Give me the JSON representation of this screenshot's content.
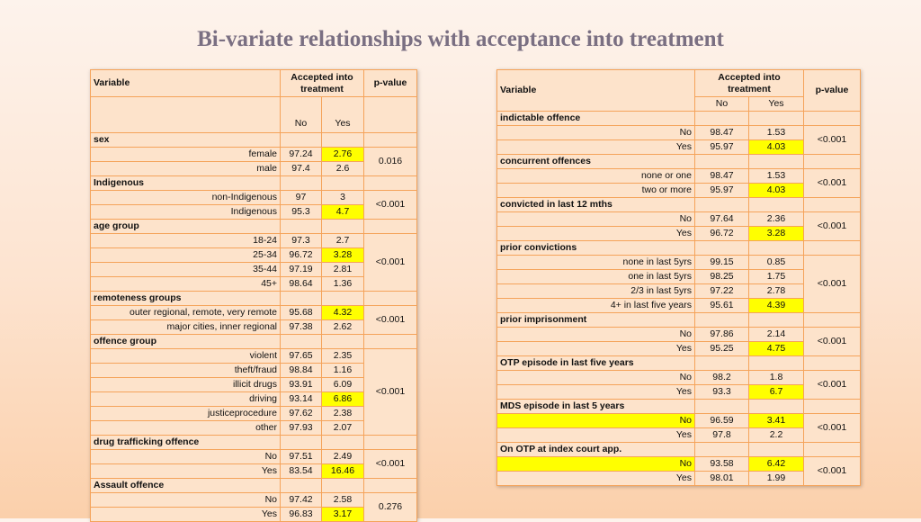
{
  "title": "Bi-variate relationships with acceptance into treatment",
  "headers": {
    "variable": "Variable",
    "accepted": "Accepted into treatment",
    "pvalue": "p-value",
    "no": "No",
    "yes": "Yes"
  },
  "left": [
    {
      "section": "sex",
      "rows": [
        {
          "label": "female",
          "no": "97.24",
          "yes": "2.76",
          "hl_yes": true
        },
        {
          "label": "male",
          "no": "97.4",
          "yes": "2.6"
        }
      ],
      "p": "0.016"
    },
    {
      "section": "Indigenous",
      "rows": [
        {
          "label": "non-Indigenous",
          "no": "97",
          "yes": "3"
        },
        {
          "label": "Indigenous",
          "no": "95.3",
          "yes": "4.7",
          "hl_yes": true
        }
      ],
      "p": "<0.001"
    },
    {
      "section": "age group",
      "rows": [
        {
          "label": "18-24",
          "no": "97.3",
          "yes": "2.7"
        },
        {
          "label": "25-34",
          "no": "96.72",
          "yes": "3.28",
          "hl_yes": true
        },
        {
          "label": "35-44",
          "no": "97.19",
          "yes": "2.81"
        },
        {
          "label": "45+",
          "no": "98.64",
          "yes": "1.36"
        }
      ],
      "p": "<0.001"
    },
    {
      "section": "remoteness groups",
      "rows": [
        {
          "label": "outer regional, remote, very remote",
          "no": "95.68",
          "yes": "4.32",
          "hl_yes": true
        },
        {
          "label": "major cities, inner regional",
          "no": "97.38",
          "yes": "2.62"
        }
      ],
      "p": "<0.001"
    },
    {
      "section": "offence group",
      "rows": [
        {
          "label": "violent",
          "no": "97.65",
          "yes": "2.35"
        },
        {
          "label": "theft/fraud",
          "no": "98.84",
          "yes": "1.16"
        },
        {
          "label": "illicit drugs",
          "no": "93.91",
          "yes": "6.09"
        },
        {
          "label": "driving",
          "no": "93.14",
          "yes": "6.86",
          "hl_yes": true
        },
        {
          "label": "justiceprocedure",
          "no": "97.62",
          "yes": "2.38"
        },
        {
          "label": "other",
          "no": "97.93",
          "yes": "2.07"
        }
      ],
      "p": "<0.001"
    },
    {
      "section": "drug trafficking offence",
      "rows": [
        {
          "label": "No",
          "no": "97.51",
          "yes": "2.49"
        },
        {
          "label": "Yes",
          "no": "83.54",
          "yes": "16.46",
          "hl_yes": true
        }
      ],
      "p": "<0.001"
    },
    {
      "section": "Assault offence",
      "rows": [
        {
          "label": "No",
          "no": "97.42",
          "yes": "2.58"
        },
        {
          "label": "Yes",
          "no": "96.83",
          "yes": "3.17",
          "hl_yes": true
        }
      ],
      "p": "0.276"
    }
  ],
  "right": [
    {
      "section": "indictable offence",
      "rows": [
        {
          "label": "No",
          "no": "98.47",
          "yes": "1.53"
        },
        {
          "label": "Yes",
          "no": "95.97",
          "yes": "4.03",
          "hl_yes": true
        }
      ],
      "p": "<0.001"
    },
    {
      "section": "concurrent offences",
      "rows": [
        {
          "label": "none or one",
          "no": "98.47",
          "yes": "1.53"
        },
        {
          "label": "two or more",
          "no": "95.97",
          "yes": "4.03",
          "hl_yes": true
        }
      ],
      "p": "<0.001"
    },
    {
      "section": "convicted in last 12 mths",
      "rows": [
        {
          "label": "No",
          "no": "97.64",
          "yes": "2.36"
        },
        {
          "label": "Yes",
          "no": "96.72",
          "yes": "3.28",
          "hl_yes": true
        }
      ],
      "p": "<0.001"
    },
    {
      "section": "prior convictions",
      "rows": [
        {
          "label": "none in last 5yrs",
          "no": "99.15",
          "yes": "0.85"
        },
        {
          "label": "one in last 5yrs",
          "no": "98.25",
          "yes": "1.75"
        },
        {
          "label": "2/3 in last 5yrs",
          "no": "97.22",
          "yes": "2.78"
        },
        {
          "label": "4+ in last five years",
          "no": "95.61",
          "yes": "4.39",
          "hl_yes": true
        }
      ],
      "p": "<0.001"
    },
    {
      "section": "prior imprisonment",
      "rows": [
        {
          "label": "No",
          "no": "97.86",
          "yes": "2.14"
        },
        {
          "label": "Yes",
          "no": "95.25",
          "yes": "4.75",
          "hl_yes": true
        }
      ],
      "p": "<0.001"
    },
    {
      "section": "OTP episode in last five years",
      "rows": [
        {
          "label": "No",
          "no": "98.2",
          "yes": "1.8"
        },
        {
          "label": "Yes",
          "no": "93.3",
          "yes": "6.7",
          "hl_yes": true
        }
      ],
      "p": "<0.001"
    },
    {
      "section": "MDS episode in last 5 years",
      "rows": [
        {
          "label": "No",
          "no": "96.59",
          "yes": "3.41",
          "hl_label": true,
          "hl_yes": true
        },
        {
          "label": "Yes",
          "no": "97.8",
          "yes": "2.2"
        }
      ],
      "p": "<0.001"
    },
    {
      "section": "On OTP at index court app.",
      "rows": [
        {
          "label": "No",
          "no": "93.58",
          "yes": "6.42",
          "hl_label": true,
          "hl_yes": true
        },
        {
          "label": "Yes",
          "no": "98.01",
          "yes": "1.99"
        }
      ],
      "p": "<0.001"
    }
  ]
}
